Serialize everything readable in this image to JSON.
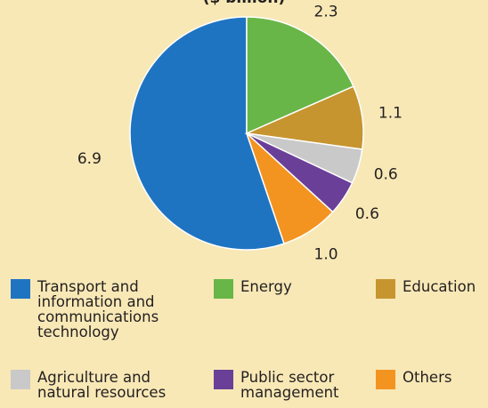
{
  "chart_data": {
    "type": "pie",
    "title": "($ billion)",
    "series": [
      {
        "name": "Transport and information and communications technology",
        "color": "#1f74c2",
        "value": 6.9
      },
      {
        "name": "Energy",
        "color": "#69b648",
        "value": 2.3
      },
      {
        "name": "Education",
        "color": "#c6952f",
        "value": 1.1
      },
      {
        "name": "Agriculture and natural resources",
        "color": "#c9c9c9",
        "value": 0.6
      },
      {
        "name": "Public sector management",
        "color": "#6a3f98",
        "value": 0.6
      },
      {
        "name": "Others",
        "color": "#f39421",
        "value": 1.0
      }
    ],
    "value_labels": [
      "6.9",
      "2.3",
      "1.1",
      "0.6",
      "0.6",
      "1.0"
    ],
    "legend": "bottom"
  }
}
